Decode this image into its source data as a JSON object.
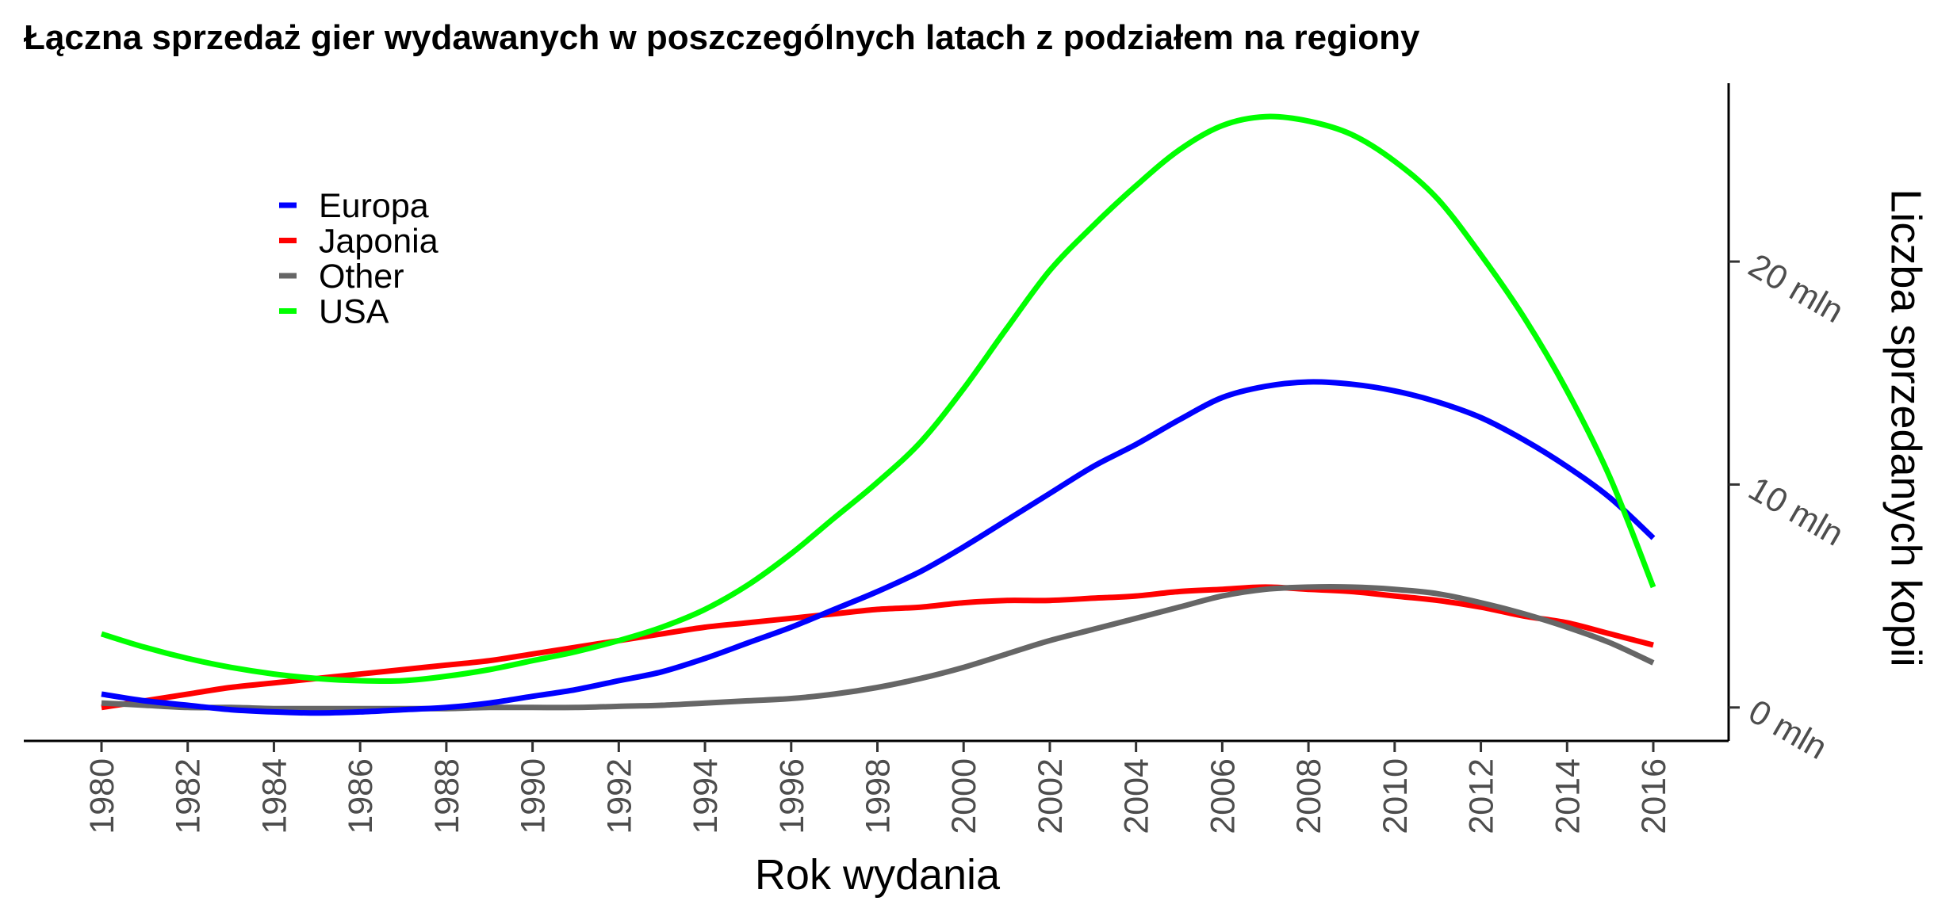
{
  "chart_data": {
    "type": "line",
    "title": "Łączna sprzedaż gier wydawanych w poszczególnych latach z podziałem na regiony",
    "xlabel": "Rok wydania",
    "ylabel": "Liczba sprzedanych kopii",
    "y_axis_position": "right",
    "xlim": [
      1980,
      2016
    ],
    "ylim": [
      -1.5,
      28
    ],
    "x_ticks": [
      1980,
      1982,
      1984,
      1986,
      1988,
      1990,
      1992,
      1994,
      1996,
      1998,
      2000,
      2002,
      2004,
      2006,
      2008,
      2010,
      2012,
      2014,
      2016
    ],
    "x_tick_labels": [
      "1980",
      "1982",
      "1984",
      "1986",
      "1988",
      "1990",
      "1992",
      "1994",
      "1996",
      "1998",
      "2000",
      "2002",
      "2004",
      "2006",
      "2008",
      "2010",
      "2012",
      "2014",
      "2016"
    ],
    "y_ticks": [
      0,
      10,
      20
    ],
    "y_tick_labels": [
      "0 mln",
      "10 mln",
      "20 mln"
    ],
    "grid": false,
    "legend_position": "top-left",
    "x": [
      1980,
      1981,
      1982,
      1983,
      1984,
      1985,
      1986,
      1987,
      1988,
      1989,
      1990,
      1991,
      1992,
      1993,
      1994,
      1995,
      1996,
      1997,
      1998,
      1999,
      2000,
      2001,
      2002,
      2003,
      2004,
      2005,
      2006,
      2007,
      2008,
      2009,
      2010,
      2011,
      2012,
      2013,
      2014,
      2015,
      2016
    ],
    "series": [
      {
        "name": "Europa",
        "color": "#0000ff",
        "values": [
          0.6,
          0.3,
          0.1,
          -0.1,
          -0.2,
          -0.25,
          -0.2,
          -0.1,
          0.0,
          0.2,
          0.5,
          0.8,
          1.2,
          1.6,
          2.2,
          2.9,
          3.6,
          4.4,
          5.2,
          6.1,
          7.2,
          8.4,
          9.6,
          10.8,
          11.8,
          12.9,
          13.9,
          14.4,
          14.6,
          14.5,
          14.2,
          13.7,
          13.0,
          12.0,
          10.8,
          9.4,
          7.6
        ]
      },
      {
        "name": "Japonia",
        "color": "#ff0000",
        "values": [
          0.0,
          0.3,
          0.6,
          0.9,
          1.1,
          1.3,
          1.5,
          1.7,
          1.9,
          2.1,
          2.4,
          2.7,
          3.0,
          3.3,
          3.6,
          3.8,
          4.0,
          4.2,
          4.4,
          4.5,
          4.7,
          4.8,
          4.8,
          4.9,
          5.0,
          5.2,
          5.3,
          5.4,
          5.3,
          5.2,
          5.0,
          4.8,
          4.5,
          4.1,
          3.8,
          3.3,
          2.8
        ]
      },
      {
        "name": "Other",
        "color": "#666666",
        "values": [
          0.2,
          0.1,
          0.0,
          0.0,
          -0.05,
          -0.05,
          -0.05,
          -0.05,
          -0.05,
          0.0,
          0.0,
          0.0,
          0.05,
          0.1,
          0.2,
          0.3,
          0.4,
          0.6,
          0.9,
          1.3,
          1.8,
          2.4,
          3.0,
          3.5,
          4.0,
          4.5,
          5.0,
          5.3,
          5.4,
          5.4,
          5.3,
          5.1,
          4.7,
          4.2,
          3.6,
          2.9,
          2.0
        ]
      },
      {
        "name": "USA",
        "color": "#00ff00",
        "values": [
          3.3,
          2.7,
          2.2,
          1.8,
          1.5,
          1.3,
          1.2,
          1.2,
          1.4,
          1.7,
          2.1,
          2.5,
          3.0,
          3.6,
          4.4,
          5.5,
          6.9,
          8.5,
          10.1,
          11.9,
          14.3,
          17.0,
          19.6,
          21.6,
          23.4,
          25.0,
          26.1,
          26.5,
          26.3,
          25.7,
          24.5,
          22.8,
          20.3,
          17.5,
          14.2,
          10.3,
          5.4
        ]
      }
    ]
  }
}
